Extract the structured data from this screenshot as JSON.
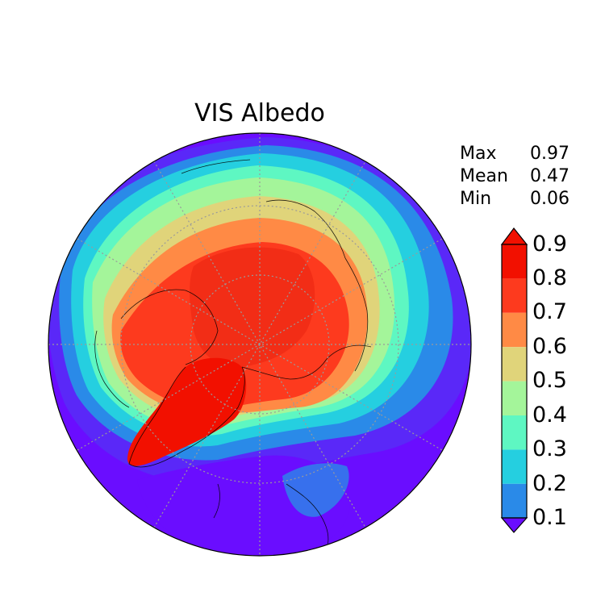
{
  "title": "VIS Albedo",
  "stats": [
    {
      "label": "Max",
      "value": "0.97"
    },
    {
      "label": "Mean",
      "value": "0.47"
    },
    {
      "label": "Min",
      "value": "0.06"
    }
  ],
  "colorbar": {
    "tick_labels": [
      "0.9",
      "0.8",
      "0.7",
      "0.6",
      "0.5",
      "0.4",
      "0.3",
      "0.2",
      "0.1"
    ],
    "levels": [
      0.1,
      0.2,
      0.3,
      0.4,
      0.5,
      0.6,
      0.7,
      0.8,
      0.9
    ],
    "colors": [
      "#6a0dff",
      "#5a28f8",
      "#2a8ae8",
      "#25cfe0",
      "#5ef7c2",
      "#a4f59a",
      "#e0d47a",
      "#ff8a45",
      "#fd3a1e",
      "#f21000"
    ],
    "extend": "both"
  },
  "map": {
    "projection": "north-polar-stereographic",
    "gridlines": "dotted-gray",
    "coastlines": "black"
  }
}
